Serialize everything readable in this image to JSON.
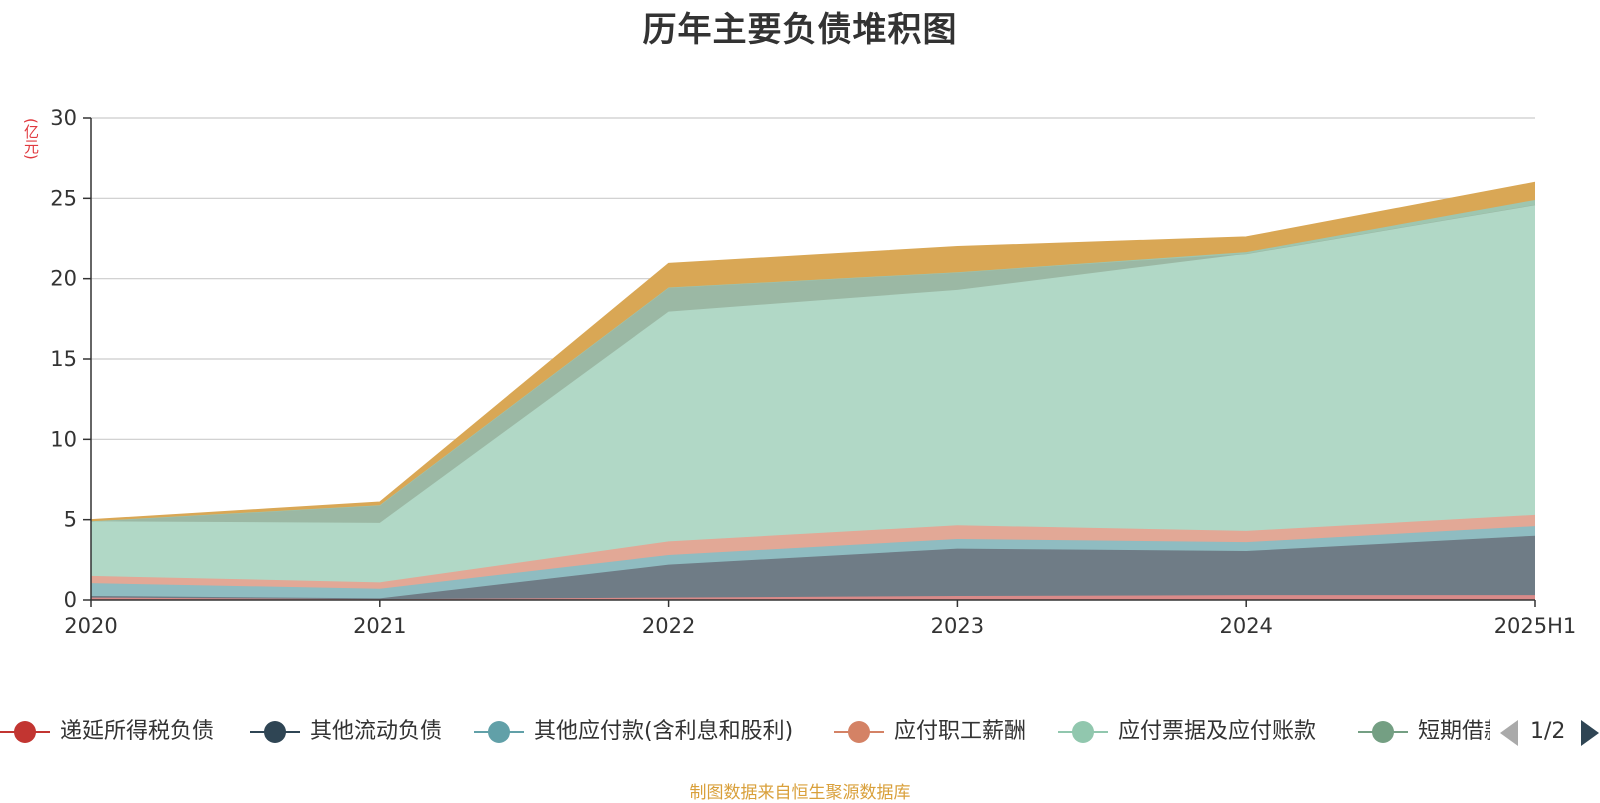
{
  "title": "历年主要负债堆积图",
  "unit": "(亿元)",
  "footer": "制图数据来自恒生聚源数据库",
  "pager": {
    "text": "1/2"
  },
  "chart_data": {
    "type": "area",
    "stacked": true,
    "title": "历年主要负债堆积图",
    "ylabel": "(亿元)",
    "xlabel": "",
    "categories": [
      "2020",
      "2021",
      "2022",
      "2023",
      "2024",
      "2025H1"
    ],
    "ylim": [
      0,
      30
    ],
    "yticks": [
      0,
      5,
      10,
      15,
      20,
      25,
      30
    ],
    "grid": true,
    "legend_position": "bottom",
    "series": [
      {
        "name": "递延所得税负债",
        "color": "#c23531",
        "fill": "#d98a89",
        "values": [
          0.15,
          0.05,
          0.15,
          0.25,
          0.3,
          0.3
        ]
      },
      {
        "name": "其他流动负债",
        "color": "#2f4554",
        "fill": "#6f7c86",
        "values": [
          0.1,
          0.05,
          2.05,
          2.95,
          2.75,
          3.7
        ]
      },
      {
        "name": "其他应付款(含利息和股利)",
        "color": "#61a0a8",
        "fill": "#8fbcc1",
        "values": [
          0.8,
          0.6,
          0.6,
          0.6,
          0.55,
          0.6
        ]
      },
      {
        "name": "应付职工薪酬",
        "color": "#d48265",
        "fill": "#e2a896",
        "values": [
          0.45,
          0.4,
          0.85,
          0.85,
          0.7,
          0.7
        ]
      },
      {
        "name": "应付票据及应付账款",
        "color": "#91c7ae",
        "fill": "#b1d8c6",
        "values": [
          3.4,
          3.7,
          14.3,
          14.65,
          17.25,
          19.3
        ]
      },
      {
        "name": "短期借款",
        "color": "#749f83",
        "fill": "#9bb8a4",
        "values": [
          0.0,
          1.1,
          1.5,
          1.1,
          0.0,
          0.0
        ]
      },
      {
        "name": "",
        "color": "#8fbca3",
        "fill": "#9ec6b0",
        "values": [
          0.0,
          0.0,
          0.0,
          0.0,
          0.1,
          0.3
        ]
      },
      {
        "name": "",
        "color": "#d9a348",
        "fill": "#d9a755",
        "values": [
          0.1,
          0.2,
          1.5,
          1.6,
          0.95,
          1.1
        ]
      }
    ]
  }
}
